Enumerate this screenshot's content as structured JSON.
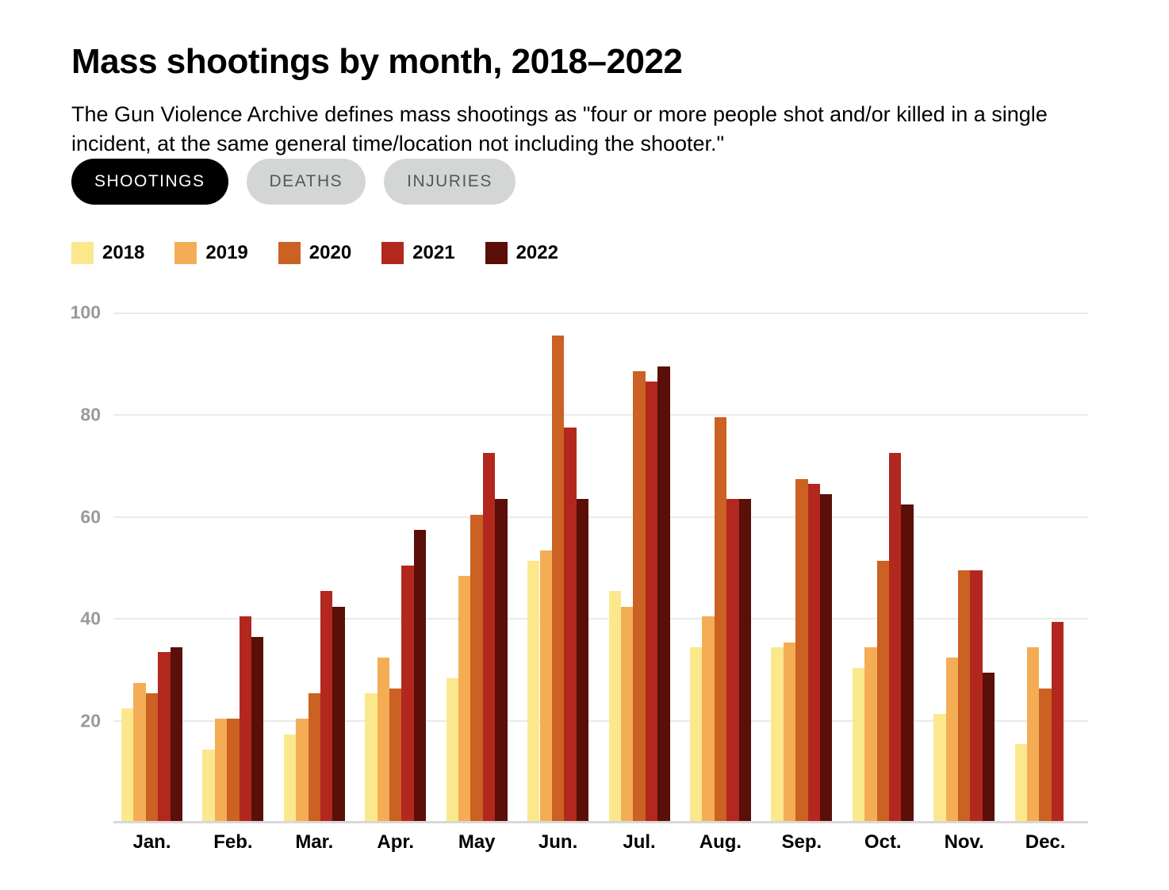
{
  "header": {
    "title": "Mass shootings by month, 2018–2022",
    "subtitle": "The Gun Violence Archive defines mass shootings as \"four or more people shot and/or killed in a single incident, at the same general time/location not including the shooter.\""
  },
  "tabs": [
    {
      "label": "SHOOTINGS",
      "active": true
    },
    {
      "label": "DEATHS",
      "active": false
    },
    {
      "label": "INJURIES",
      "active": false
    }
  ],
  "colors": {
    "background": "#FFFFFF",
    "tab_active_bg": "#000000",
    "tab_active_text": "#FFFFFF",
    "tab_inactive_bg": "#D4D6D6",
    "tab_inactive_text": "#55585A",
    "gridline": "#EAEAEA",
    "axis_baseline": "#D8D8D8",
    "axis_tick_text": "#9A9A9A",
    "series_2018": "#FBE88C",
    "series_2019": "#F4AD55",
    "series_2020": "#CB6122",
    "series_2021": "#B2281E",
    "series_2022": "#5A0F08"
  },
  "chart_data": {
    "type": "bar",
    "title": "Mass shootings by month, 2018–2022",
    "categories": [
      "Jan.",
      "Feb.",
      "Mar.",
      "Apr.",
      "May",
      "Jun.",
      "Jul.",
      "Aug.",
      "Sep.",
      "Oct.",
      "Nov.",
      "Dec."
    ],
    "series": [
      {
        "name": "2018",
        "color": "#FBE88C",
        "values": [
          22,
          14,
          17,
          25,
          28,
          51,
          45,
          34,
          34,
          30,
          21,
          15
        ]
      },
      {
        "name": "2019",
        "color": "#F4AD55",
        "values": [
          27,
          20,
          20,
          32,
          48,
          53,
          42,
          40,
          35,
          34,
          32,
          34
        ]
      },
      {
        "name": "2020",
        "color": "#CB6122",
        "values": [
          25,
          20,
          25,
          26,
          60,
          95,
          88,
          79,
          67,
          51,
          49,
          26
        ]
      },
      {
        "name": "2021",
        "color": "#B2281E",
        "values": [
          33,
          40,
          45,
          50,
          72,
          77,
          86,
          63,
          66,
          72,
          49,
          39
        ]
      },
      {
        "name": "2022",
        "color": "#5A0F08",
        "values": [
          34,
          36,
          42,
          57,
          63,
          63,
          89,
          63,
          64,
          62,
          29,
          null
        ]
      }
    ],
    "xlabel": "",
    "ylabel": "",
    "yticks": [
      20,
      40,
      60,
      80,
      100
    ],
    "ylim": [
      0,
      100
    ],
    "grid": true,
    "legend_position": "top-left"
  }
}
